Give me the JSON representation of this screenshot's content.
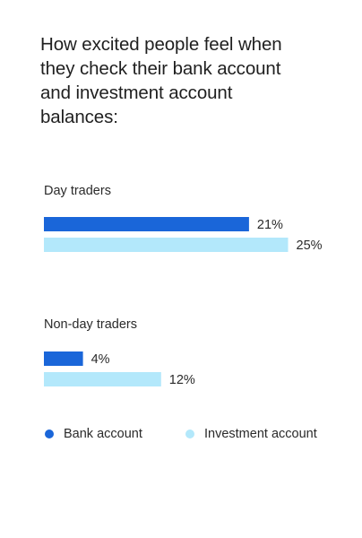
{
  "chart_data": {
    "type": "bar",
    "orientation": "horizontal",
    "title": "How excited people feel when they check their bank account and investment account balances:",
    "categories": [
      "Day traders",
      "Non-day traders"
    ],
    "series": [
      {
        "name": "Bank account",
        "color": "#1a66d9",
        "values": [
          21,
          4
        ]
      },
      {
        "name": "Investment account",
        "color": "#b3e8fb",
        "values": [
          25,
          12
        ]
      }
    ],
    "value_suffix": "%",
    "legend": "bottom"
  }
}
